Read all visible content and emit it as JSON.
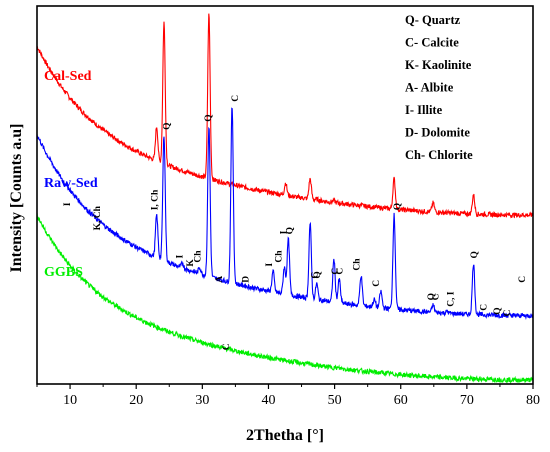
{
  "chart_data": {
    "type": "line",
    "xlabel": "2Thetha [°]",
    "ylabel": "Intensity [Counts a.u]",
    "xlim": [
      5,
      80
    ],
    "xticks": [
      10,
      20,
      30,
      40,
      50,
      60,
      70,
      80
    ],
    "grid": false,
    "legend_placement": "top-right",
    "legend": [
      "Q- Quartz",
      "C- Calcite",
      "K- Kaolinite",
      "A- Albite",
      "I- Illite",
      "D- Dolomite",
      "Ch- Chlorite"
    ],
    "series": [
      {
        "name": "Cal-Sed",
        "color": "#ff0000",
        "baseline_start": 420,
        "baseline_end": 210,
        "peaks": [
          {
            "x": 10.3,
            "y": 310
          },
          {
            "x": 23.1,
            "y": 320
          },
          {
            "x": 24.2,
            "y": 450
          },
          {
            "x": 31.0,
            "y": 460
          },
          {
            "x": 34.6,
            "y": 240
          },
          {
            "x": 42.6,
            "y": 250
          },
          {
            "x": 46.3,
            "y": 255
          },
          {
            "x": 47.3,
            "y": 230
          },
          {
            "x": 49.9,
            "y": 228
          },
          {
            "x": 54.0,
            "y": 222
          },
          {
            "x": 59.0,
            "y": 255
          },
          {
            "x": 64.9,
            "y": 225
          },
          {
            "x": 71.0,
            "y": 235
          }
        ]
      },
      {
        "name": "Raw-Sed",
        "color": "#0000ff",
        "baseline_start": 310,
        "baseline_end": 85,
        "peaks": [
          {
            "x": 10.3,
            "y": 215
          },
          {
            "x": 14.5,
            "y": 185
          },
          {
            "x": 23.1,
            "y": 210
          },
          {
            "x": 24.2,
            "y": 310
          },
          {
            "x": 27.0,
            "y": 150
          },
          {
            "x": 28.7,
            "y": 140
          },
          {
            "x": 29.6,
            "y": 145
          },
          {
            "x": 31.0,
            "y": 320
          },
          {
            "x": 34.5,
            "y": 345
          },
          {
            "x": 37.0,
            "y": 120
          },
          {
            "x": 40.7,
            "y": 140
          },
          {
            "x": 42.4,
            "y": 145
          },
          {
            "x": 43.0,
            "y": 180
          },
          {
            "x": 46.3,
            "y": 200
          },
          {
            "x": 47.3,
            "y": 125
          },
          {
            "x": 49.9,
            "y": 155
          },
          {
            "x": 50.7,
            "y": 130
          },
          {
            "x": 54.0,
            "y": 135
          },
          {
            "x": 56.0,
            "y": 105
          },
          {
            "x": 57.0,
            "y": 115
          },
          {
            "x": 59.0,
            "y": 210
          },
          {
            "x": 64.9,
            "y": 98
          },
          {
            "x": 67.0,
            "y": 90
          },
          {
            "x": 71.0,
            "y": 150
          },
          {
            "x": 73.0,
            "y": 85
          },
          {
            "x": 74.8,
            "y": 80
          },
          {
            "x": 76.5,
            "y": 78
          }
        ]
      },
      {
        "name": "GGBS",
        "color": "#00ee00",
        "baseline_start": 210,
        "baseline_end": 5,
        "peaks": [
          {
            "x": 34.0,
            "y": 25
          }
        ]
      }
    ],
    "peak_labels": [
      {
        "text": "I",
        "x": 10.0
      },
      {
        "text": "K, Ch",
        "x": 14.5
      },
      {
        "text": "I, Ch",
        "x": 23.2
      },
      {
        "text": "Q",
        "x": 25.0
      },
      {
        "text": "I",
        "x": 27.0
      },
      {
        "text": "K",
        "x": 28.6
      },
      {
        "text": "Ch",
        "x": 29.7
      },
      {
        "text": "Q",
        "x": 31.3
      },
      {
        "text": "C",
        "x": 35.4
      },
      {
        "text": "A",
        "x": 33.0
      },
      {
        "text": "D",
        "x": 37.0
      },
      {
        "text": "I",
        "x": 40.5
      },
      {
        "text": "Ch",
        "x": 42.0
      },
      {
        "text": "I",
        "x": 42.7
      },
      {
        "text": "Q",
        "x": 43.6
      },
      {
        "text": "C",
        "x": 47.4
      },
      {
        "text": "Q",
        "x": 47.8
      },
      {
        "text": "C",
        "x": 50.5
      },
      {
        "text": "C",
        "x": 51.2
      },
      {
        "text": "Ch",
        "x": 53.8
      },
      {
        "text": "C",
        "x": 56.7
      },
      {
        "text": "Q",
        "x": 59.9
      },
      {
        "text": "Q",
        "x": 65.0
      },
      {
        "text": "C",
        "x": 65.7
      },
      {
        "text": "C, I",
        "x": 68.0
      },
      {
        "text": "Q",
        "x": 71.5
      },
      {
        "text": "C",
        "x": 73.0
      },
      {
        "text": "Q",
        "x": 75.0
      },
      {
        "text": "C",
        "x": 76.5
      },
      {
        "text": "C",
        "x": 78.8
      },
      {
        "text": "C",
        "x": 34.0
      }
    ]
  }
}
